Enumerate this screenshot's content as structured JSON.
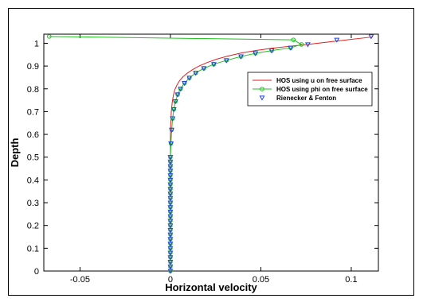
{
  "chart_data": {
    "type": "line",
    "xlabel": "Horizontal velocity",
    "ylabel": "Depth",
    "xlim": [
      -0.07,
      0.115
    ],
    "ylim": [
      0,
      1.04
    ],
    "grid": false,
    "legend_placement": "upper-right",
    "x_ticks": [
      "-0.05",
      "0",
      "0.05",
      "0.1"
    ],
    "x_tick_values": [
      -0.05,
      0,
      0.05,
      0.1
    ],
    "y_ticks": [
      "0",
      "0.1",
      "0.2",
      "0.3",
      "0.4",
      "0.5",
      "0.6",
      "0.7",
      "0.8",
      "0.9",
      "1"
    ],
    "y_tick_values": [
      0,
      0.1,
      0.2,
      0.3,
      0.4,
      0.5,
      0.6,
      0.7,
      0.8,
      0.9,
      1
    ],
    "series": [
      {
        "name": "HOS using u on free surface",
        "color": "#e02020",
        "marker": "none",
        "x": [
          0,
          0,
          0,
          0,
          0,
          0,
          0,
          0.0002,
          0.0005,
          0.001,
          0.0016,
          0.0024,
          0.0035,
          0.005,
          0.0068,
          0.0092,
          0.0122,
          0.0158,
          0.0202,
          0.0255,
          0.0318,
          0.039,
          0.047,
          0.056,
          0.066,
          0.076,
          0.092,
          0.112
        ],
        "y": [
          0,
          0.1,
          0.2,
          0.3,
          0.4,
          0.5,
          0.6,
          0.65,
          0.7,
          0.74,
          0.77,
          0.795,
          0.815,
          0.835,
          0.852,
          0.868,
          0.884,
          0.9,
          0.915,
          0.93,
          0.944,
          0.957,
          0.968,
          0.978,
          0.987,
          0.995,
          1.01,
          1.028
        ]
      },
      {
        "name": "HOS using phi on free surface",
        "color": "#20c020",
        "marker": "circle",
        "x": [
          0,
          0,
          0,
          0,
          0,
          0,
          0,
          0,
          0,
          0,
          0,
          0,
          0,
          0,
          0,
          0,
          0,
          0,
          0,
          0,
          0,
          0,
          0,
          0,
          0,
          0,
          0.0003,
          0.0007,
          0.0012,
          0.0019,
          0.0028,
          0.004,
          0.0056,
          0.0078,
          0.0105,
          0.014,
          0.0185,
          0.024,
          0.031,
          0.039,
          0.047,
          0.056,
          0.0665,
          0.0725,
          0.068,
          -0.067
        ],
        "y": [
          0,
          0.02,
          0.04,
          0.06,
          0.08,
          0.1,
          0.12,
          0.14,
          0.16,
          0.18,
          0.2,
          0.22,
          0.24,
          0.26,
          0.28,
          0.3,
          0.32,
          0.34,
          0.36,
          0.38,
          0.4,
          0.42,
          0.44,
          0.46,
          0.48,
          0.5,
          0.56,
          0.62,
          0.67,
          0.71,
          0.745,
          0.775,
          0.8,
          0.825,
          0.848,
          0.87,
          0.89,
          0.908,
          0.925,
          0.942,
          0.956,
          0.968,
          0.98,
          0.995,
          1.015,
          1.03
        ]
      },
      {
        "name": "Rienecker & Fenton",
        "color": "#2040e0",
        "marker": "triangle-down",
        "x": [
          0,
          0,
          0,
          0,
          0,
          0,
          0,
          0,
          0,
          0,
          0,
          0,
          0,
          0,
          0,
          0,
          0,
          0,
          0,
          0,
          0,
          0,
          0,
          0,
          0,
          0,
          0.0003,
          0.0007,
          0.0012,
          0.0019,
          0.0028,
          0.004,
          0.0056,
          0.0078,
          0.0105,
          0.014,
          0.0185,
          0.024,
          0.031,
          0.039,
          0.047,
          0.056,
          0.0665,
          0.076,
          0.092,
          0.111
        ],
        "y": [
          0,
          0.02,
          0.04,
          0.06,
          0.08,
          0.1,
          0.12,
          0.14,
          0.16,
          0.18,
          0.2,
          0.22,
          0.24,
          0.26,
          0.28,
          0.3,
          0.32,
          0.34,
          0.36,
          0.38,
          0.4,
          0.42,
          0.44,
          0.46,
          0.48,
          0.5,
          0.56,
          0.62,
          0.67,
          0.71,
          0.745,
          0.775,
          0.8,
          0.825,
          0.848,
          0.87,
          0.89,
          0.908,
          0.925,
          0.942,
          0.956,
          0.968,
          0.98,
          0.995,
          1.015,
          1.03
        ]
      }
    ]
  }
}
